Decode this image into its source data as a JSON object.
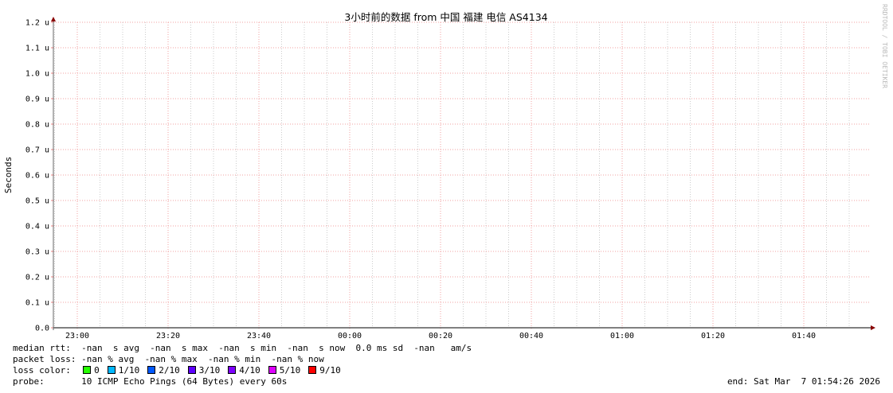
{
  "chart_data": {
    "type": "line",
    "title": "3小时前的数据 from 中国 福建 电信 AS4134",
    "ylabel": "Seconds",
    "xlabel": "",
    "ylim": [
      0,
      1.2
    ],
    "y_ticks": [
      "0.0",
      "0.1 u",
      "0.2 u",
      "0.3 u",
      "0.4 u",
      "0.5 u",
      "0.6 u",
      "0.7 u",
      "0.8 u",
      "0.9 u",
      "1.0 u",
      "1.1 u",
      "1.2 u"
    ],
    "x_ticks": [
      "23:00",
      "23:20",
      "23:40",
      "00:00",
      "00:20",
      "00:40",
      "01:00",
      "01:20",
      "01:40"
    ],
    "grid": true,
    "series": [],
    "watermark": "RRDTOOL / TOBI OETIKER"
  },
  "legend": {
    "median_rtt": "median rtt:  -nan  s avg  -nan  s max  -nan  s min  -nan  s now  0.0 ms sd  -nan   am/s",
    "packet_loss": "packet loss: -nan % avg  -nan % max  -nan % min  -nan % now",
    "loss_color_label": "loss color:",
    "loss_colors": [
      {
        "label": "0",
        "color": "#26ff00"
      },
      {
        "label": "1/10",
        "color": "#00b8ff"
      },
      {
        "label": "2/10",
        "color": "#0059ff"
      },
      {
        "label": "3/10",
        "color": "#5e00ff"
      },
      {
        "label": "4/10",
        "color": "#7e00ff"
      },
      {
        "label": "5/10",
        "color": "#dd00ff"
      },
      {
        "label": "9/10",
        "color": "#ff0000"
      }
    ],
    "probe": "probe:       10 ICMP Echo Pings (64 Bytes) every 60s",
    "end": "end: Sat Mar  7 01:54:26 2026"
  }
}
